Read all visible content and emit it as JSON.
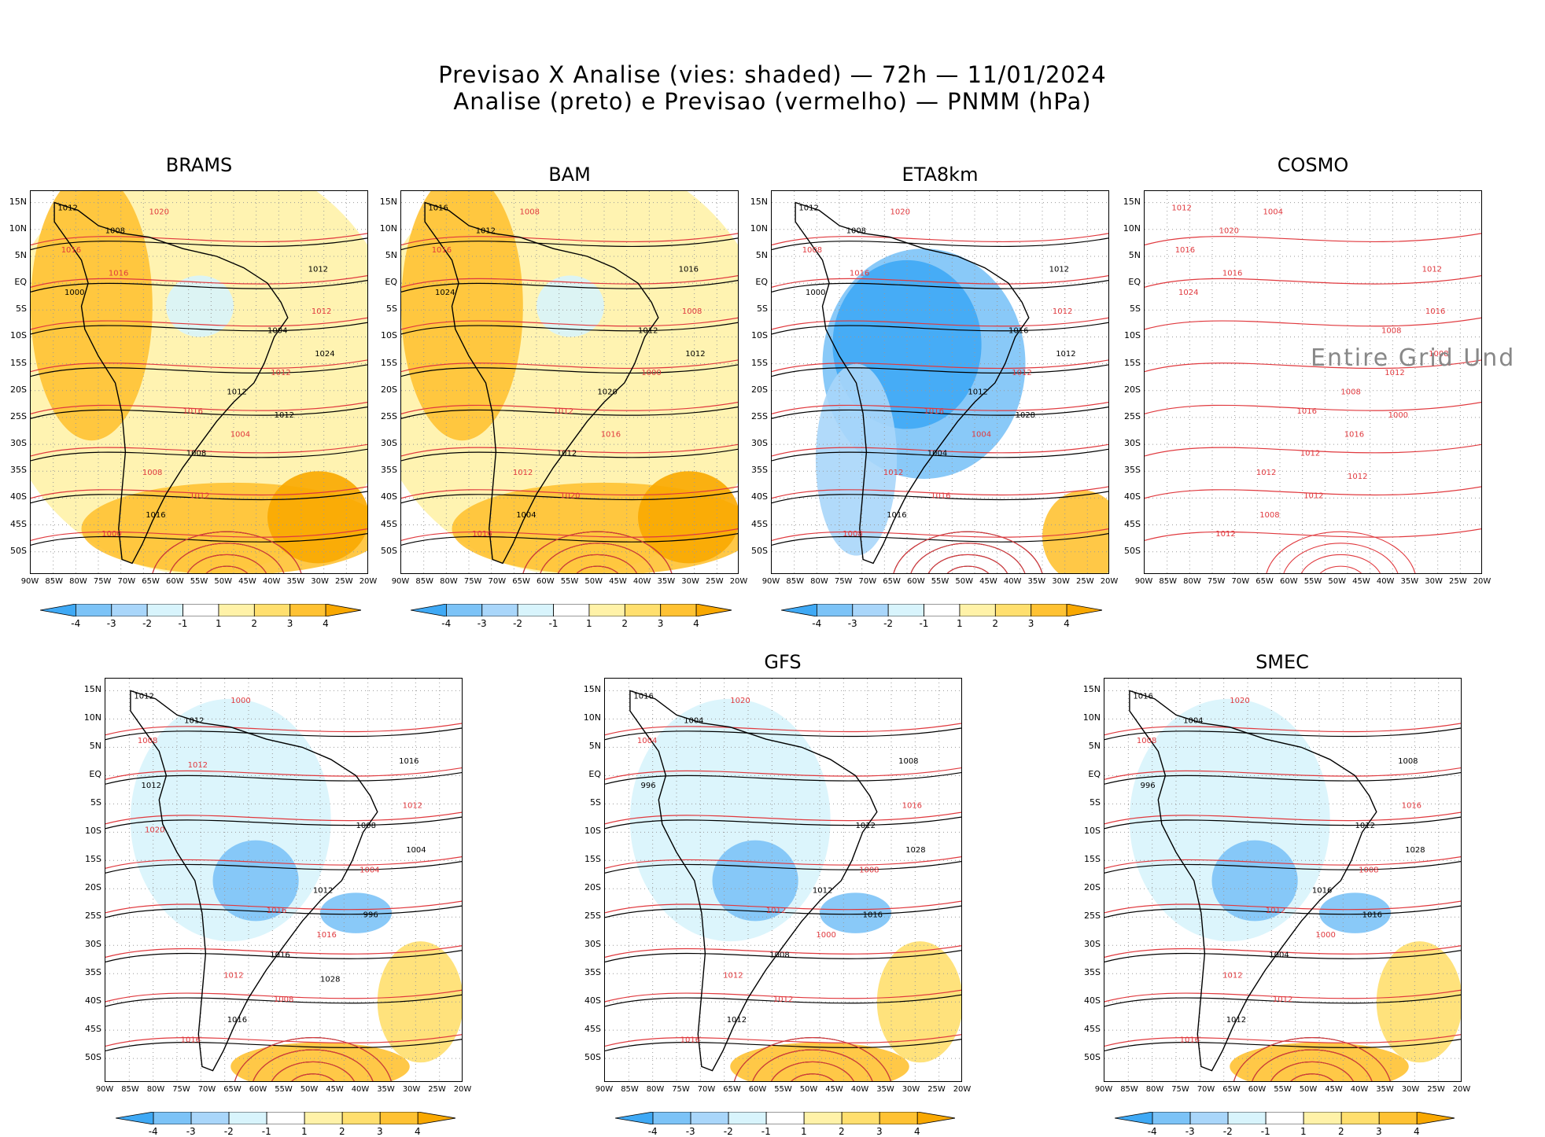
{
  "header": {
    "line1": "Previsao X Analise (vies: shaded) — 72h — 11/01/2024",
    "line2": "Analise (preto) e Previsao (vermelho) — PNMM (hPa)"
  },
  "lat_labels": [
    "15N",
    "10N",
    "5N",
    "EQ",
    "5S",
    "10S",
    "15S",
    "20S",
    "25S",
    "30S",
    "35S",
    "40S",
    "45S",
    "50S"
  ],
  "lon_labels": [
    "90W",
    "85W",
    "80W",
    "75W",
    "70W",
    "65W",
    "60W",
    "55W",
    "50W",
    "45W",
    "40W",
    "35W",
    "30W",
    "25W",
    "20W"
  ],
  "colorbar": {
    "labels": [
      "-4",
      "-3",
      "-2",
      "-1",
      "1",
      "2",
      "3",
      "4"
    ],
    "colors": [
      "#3fa9f5",
      "#7cc3f7",
      "#a9d6fa",
      "#d8f4fc",
      "#ffffff",
      "#fff2a8",
      "#ffdf6e",
      "#ffc233",
      "#f9a800"
    ]
  },
  "panels": [
    {
      "id": "brams",
      "title": "BRAMS",
      "bias": "warm",
      "has_colorbar": true,
      "contours": [
        "1012",
        "1016",
        "1012",
        "1008",
        "1004",
        "1000",
        "1012",
        "1016",
        "1008",
        "1012",
        "1016",
        "1012",
        "1008",
        "1004",
        "1000",
        "1012",
        "1024",
        "1020",
        "1012",
        "1016"
      ]
    },
    {
      "id": "bam",
      "title": "BAM",
      "bias": "warm",
      "has_colorbar": true,
      "contours": [
        "1016",
        "1012",
        "1016",
        "1012",
        "1012",
        "1016",
        "1020",
        "1016",
        "1012",
        "1008",
        "1004",
        "1000",
        "1012",
        "1016",
        "1024",
        "1020",
        "1012",
        "1008"
      ]
    },
    {
      "id": "eta8km",
      "title": "ETA8km",
      "bias": "cold",
      "has_colorbar": true,
      "contours": [
        "1012",
        "1016",
        "1012",
        "1012",
        "1016",
        "1008",
        "1012",
        "1008",
        "1004",
        "1012",
        "1016",
        "1012",
        "1008",
        "1004",
        "1000",
        "1016",
        "1012",
        "1020",
        "1028",
        "1016"
      ]
    },
    {
      "id": "cosmo",
      "title": "COSMO",
      "bias": "none",
      "has_colorbar": false,
      "undefined_label": "Entire Grid Und",
      "contours": [
        "1012",
        "1016",
        "1012",
        "1012",
        "1008",
        "1012",
        "1008",
        "1016",
        "1012",
        "1016",
        "1008",
        "1012",
        "1020",
        "1016",
        "1024",
        "1012",
        "1008",
        "1004",
        "1000",
        "1016",
        "1012"
      ]
    },
    {
      "id": "model5",
      "title": "",
      "bias": "mixed",
      "has_colorbar": true,
      "contours": [
        "1012",
        "1016",
        "1016",
        "1012",
        "1008",
        "1016",
        "1012",
        "1008",
        "1016",
        "1012",
        "1016",
        "1004",
        "1012",
        "1016",
        "1012",
        "1008",
        "1004",
        "1000",
        "996",
        "1012",
        "1028",
        "1020"
      ]
    },
    {
      "id": "gfs",
      "title": "GFS",
      "bias": "mixed",
      "has_colorbar": true,
      "contours": [
        "1016",
        "1012",
        "1008",
        "1012",
        "1012",
        "1016",
        "1012",
        "1004",
        "1008",
        "1016",
        "1012",
        "1008",
        "1004",
        "1000",
        "996",
        "1012",
        "1028",
        "1020",
        "1016"
      ]
    },
    {
      "id": "smec",
      "title": "SMEC",
      "bias": "mixed",
      "has_colorbar": true,
      "contours": [
        "1016",
        "1012",
        "1008",
        "1012",
        "1012",
        "1016",
        "1016",
        "1008",
        "1004",
        "1016",
        "1012",
        "1008",
        "1004",
        "1000",
        "996",
        "1012",
        "1028",
        "1020",
        "1016"
      ]
    }
  ]
}
